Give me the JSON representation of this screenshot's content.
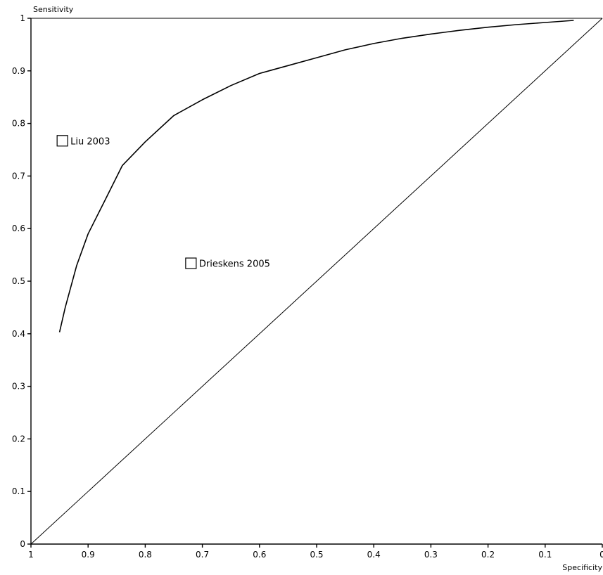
{
  "chart_data": {
    "type": "scatter",
    "xlabel": "Specificity",
    "ylabel": "Sensitivity",
    "xlim": [
      1,
      0
    ],
    "ylim": [
      0,
      1
    ],
    "x_reversed": true,
    "x_tick_labels": [
      "1",
      "0.9",
      "0.8",
      "0.7",
      "0.6",
      "0.5",
      "0.4",
      "0.3",
      "0.2",
      "0.1",
      "0"
    ],
    "y_tick_labels": [
      "0",
      "0.1",
      "0.2",
      "0.3",
      "0.4",
      "0.5",
      "0.6",
      "0.7",
      "0.8",
      "0.9",
      "1"
    ],
    "grid": false,
    "studies": [
      {
        "label": "Liu 2003",
        "specificity": 0.945,
        "sensitivity": 0.767
      },
      {
        "label": "Drieskens 2005",
        "specificity": 0.72,
        "sensitivity": 0.534
      }
    ],
    "sroc_curve": {
      "x": [
        0.95,
        0.94,
        0.92,
        0.9,
        0.87,
        0.84,
        0.8,
        0.75,
        0.7,
        0.65,
        0.6,
        0.55,
        0.5,
        0.45,
        0.4,
        0.35,
        0.3,
        0.25,
        0.2,
        0.15,
        0.1,
        0.05
      ],
      "y": [
        0.403,
        0.45,
        0.53,
        0.59,
        0.655,
        0.72,
        0.765,
        0.815,
        0.845,
        0.872,
        0.895,
        0.91,
        0.925,
        0.94,
        0.952,
        0.962,
        0.97,
        0.977,
        0.983,
        0.988,
        0.992,
        0.996
      ]
    },
    "reference_line": {
      "x": [
        1,
        0
      ],
      "y": [
        0,
        1
      ]
    }
  }
}
